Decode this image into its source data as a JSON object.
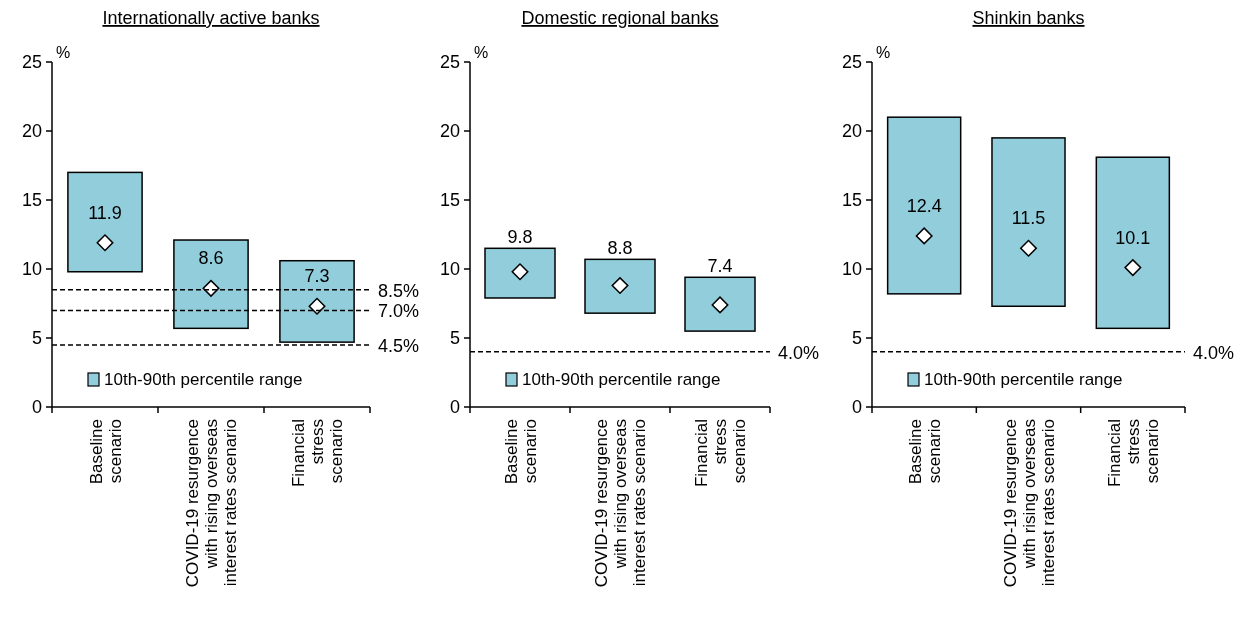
{
  "chart_data": [
    {
      "type": "bar",
      "title": "Internationally active banks",
      "ylabel": "%",
      "categories": [
        "Baseline\nscenario",
        "COVID-19 resurgence\nwith rising overseas\ninterest rates scenario",
        "Financial\nstress\nscenario"
      ],
      "ylim": [
        0,
        25
      ],
      "yticks": [
        0,
        5,
        10,
        15,
        20,
        25
      ],
      "legend": "bottom",
      "series": [
        {
          "type": "bar",
          "name": "10th-90th percentile range",
          "color": "#92cddc",
          "base": [
            9.8,
            5.7,
            4.7
          ],
          "values": [
            7.2,
            6.4,
            5.9
          ]
        },
        {
          "type": "scatter",
          "marker": "diamond",
          "color": "#ffffff",
          "x": [
            "Baseline\nscenario",
            "COVID-19 resurgence\nwith rising overseas\ninterest rates scenario",
            "Financial\nstress\nscenario"
          ],
          "values": [
            11.9,
            8.6,
            7.3
          ],
          "value_labels": [
            "11.9",
            "8.6",
            "7.3"
          ]
        }
      ],
      "ref_lines": [
        {
          "axis": "y",
          "value": 8.5,
          "label": "8.5%",
          "color": "#000000",
          "line_style": "dashed"
        },
        {
          "axis": "y",
          "value": 7.0,
          "label": "7.0%",
          "color": "#000000",
          "line_style": "dashed"
        },
        {
          "axis": "y",
          "value": 4.5,
          "label": "4.5%",
          "color": "#000000",
          "line_style": "dashed"
        }
      ]
    },
    {
      "type": "bar",
      "title": "Domestic regional banks",
      "ylabel": "%",
      "categories": [
        "Baseline\nscenario",
        "COVID-19 resurgence\nwith rising overseas\ninterest rates scenario",
        "Financial\nstress\nscenario"
      ],
      "ylim": [
        0,
        25
      ],
      "yticks": [
        0,
        5,
        10,
        15,
        20,
        25
      ],
      "legend": "bottom",
      "series": [
        {
          "type": "bar",
          "name": "10th-90th percentile range",
          "color": "#92cddc",
          "base": [
            7.9,
            6.8,
            5.5
          ],
          "values": [
            3.6,
            3.9,
            3.9
          ]
        },
        {
          "type": "scatter",
          "marker": "diamond",
          "color": "#ffffff",
          "x": [
            "Baseline\nscenario",
            "COVID-19 resurgence\nwith rising overseas\ninterest rates scenario",
            "Financial\nstress\nscenario"
          ],
          "values": [
            9.8,
            8.8,
            7.4
          ],
          "value_labels": [
            "9.8",
            "8.8",
            "7.4"
          ]
        }
      ],
      "ref_lines": [
        {
          "axis": "y",
          "value": 4.0,
          "label": "4.0%",
          "color": "#000000",
          "line_style": "dashed"
        }
      ]
    },
    {
      "type": "bar",
      "title": "Shinkin banks",
      "ylabel": "%",
      "categories": [
        "Baseline\nscenario",
        "COVID-19 resurgence\nwith rising overseas\ninterest rates scenario",
        "Financial\nstress\nscenario"
      ],
      "ylim": [
        0,
        25
      ],
      "yticks": [
        0,
        5,
        10,
        15,
        20,
        25
      ],
      "legend": "bottom",
      "series": [
        {
          "type": "bar",
          "name": "10th-90th percentile range",
          "color": "#92cddc",
          "base": [
            8.2,
            7.3,
            5.7
          ],
          "values": [
            12.8,
            12.2,
            12.4
          ]
        },
        {
          "type": "scatter",
          "marker": "diamond",
          "color": "#ffffff",
          "x": [
            "Baseline\nscenario",
            "COVID-19 resurgence\nwith rising overseas\ninterest rates scenario",
            "Financial\nstress\nscenario"
          ],
          "values": [
            12.4,
            11.5,
            10.1
          ],
          "value_labels": [
            "12.4",
            "11.5",
            "10.1"
          ]
        }
      ],
      "ref_lines": [
        {
          "axis": "y",
          "value": 4.0,
          "label": "4.0%",
          "color": "#000000",
          "line_style": "dashed"
        }
      ]
    }
  ]
}
